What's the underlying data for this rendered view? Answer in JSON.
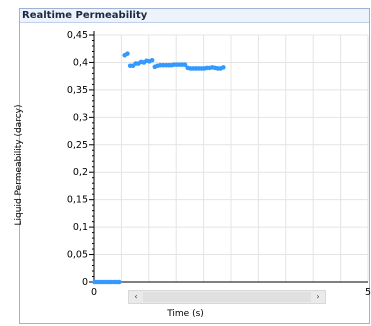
{
  "panel": {
    "title": "Realtime Permeability"
  },
  "chart_data": {
    "type": "scatter",
    "title": "",
    "xlabel": "Time (s)",
    "ylabel": "Liquid Permeability (darcy)",
    "xlim": [
      0,
      50
    ],
    "ylim": [
      0,
      0.45
    ],
    "x_ticks": [
      "0",
      "5"
    ],
    "y_ticks": [
      "0",
      "0,05",
      "0,1",
      "0,15",
      "0,2",
      "0,25",
      "0,3",
      "0,35",
      "0,4",
      "0,45"
    ],
    "grid": true,
    "marker_color": "#3399ff",
    "series": [
      {
        "x": [
          0.1,
          0.6,
          1.1,
          1.6,
          2.1,
          2.6,
          3.1,
          3.6,
          4.1,
          4.6,
          5.6,
          6.1,
          6.6,
          7.1,
          7.6,
          8.1,
          8.6,
          9.1,
          9.6,
          10.1,
          10.6,
          11.1,
          11.6,
          12.1,
          12.6,
          13.1,
          13.6,
          14.1,
          14.6,
          15.1,
          15.6,
          16.1,
          16.6,
          17.1,
          17.6,
          18.1,
          18.6,
          19.1,
          19.6,
          20.1,
          20.6,
          21.1,
          21.6,
          22.1,
          22.6,
          23.1,
          23.6
        ],
        "y": [
          0,
          0,
          0,
          0,
          0,
          0,
          0,
          0,
          0,
          0,
          0.413,
          0.416,
          0.394,
          0.394,
          0.398,
          0.398,
          0.401,
          0.4,
          0.403,
          0.402,
          0.404,
          0.392,
          0.394,
          0.395,
          0.395,
          0.395,
          0.395,
          0.395,
          0.396,
          0.396,
          0.396,
          0.396,
          0.396,
          0.39,
          0.389,
          0.389,
          0.389,
          0.389,
          0.389,
          0.389,
          0.39,
          0.39,
          0.391,
          0.39,
          0.389,
          0.389,
          0.391
        ]
      }
    ]
  },
  "scrollbar": {
    "left_arrow": "‹",
    "right_arrow": "›"
  }
}
